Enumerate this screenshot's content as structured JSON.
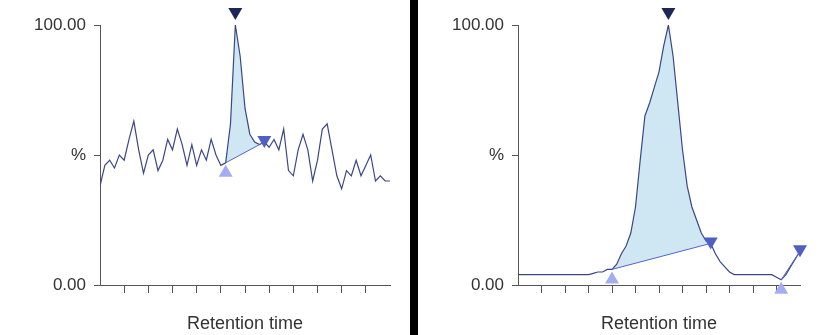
{
  "chart_data": [
    {
      "type": "line",
      "x_label": "Retention time",
      "color": "#3b4785",
      "x": [
        0,
        0.2,
        0.4,
        0.6,
        0.8,
        1,
        1.2,
        1.4,
        1.6,
        1.8,
        2,
        2.2,
        2.4,
        2.6,
        2.8,
        3,
        3.2,
        3.4,
        3.6,
        3.8,
        4,
        4.2,
        4.4,
        4.6,
        4.8,
        5,
        5.2,
        5.4,
        5.6,
        5.8,
        6,
        6.2,
        6.4,
        6.6,
        6.8,
        7,
        7.2,
        7.4,
        7.6,
        7.8,
        8,
        8.2,
        8.4,
        8.6,
        8.8,
        9,
        9.2,
        9.4,
        9.6,
        9.8,
        10,
        10.2,
        10.4,
        10.6,
        10.8,
        11,
        11.2,
        11.4,
        11.6,
        11.8,
        12
      ],
      "values": [
        38,
        46,
        48,
        45,
        50,
        48,
        56,
        63,
        52,
        43,
        50,
        52,
        44,
        48,
        56,
        52,
        60,
        54,
        46,
        54,
        46,
        52,
        48,
        56,
        50,
        46,
        47,
        62,
        100,
        88,
        68,
        58,
        55,
        54,
        55,
        53,
        56,
        52,
        60,
        44,
        42,
        52,
        58,
        52,
        40,
        48,
        60,
        62,
        52,
        42,
        37,
        44,
        42,
        48,
        42,
        46,
        50,
        40,
        42,
        40,
        40
      ],
      "xlim": [
        0,
        12
      ],
      "xticks": [
        1,
        2,
        3,
        4,
        5,
        6,
        7,
        8,
        9,
        10,
        11
      ],
      "ylim": [
        0,
        100
      ],
      "yticks": [
        {
          "value": 0,
          "label": "0.00"
        },
        {
          "value": 50,
          "label": "%"
        },
        {
          "value": 100,
          "label": "100.00"
        }
      ],
      "tick_labels": "y",
      "peaks": [
        {
          "start": [
            5.2,
            47
          ],
          "apex": [
            5.6,
            100
          ],
          "end": [
            6.8,
            55
          ]
        }
      ]
    },
    {
      "type": "line",
      "x_label": "Retention time",
      "color": "#3b4785",
      "x": [
        0,
        0.2,
        0.4,
        0.6,
        0.8,
        1,
        1.2,
        1.4,
        1.6,
        1.8,
        2,
        2.2,
        2.4,
        2.6,
        2.8,
        3,
        3.2,
        3.4,
        3.6,
        3.8,
        4,
        4.2,
        4.4,
        4.6,
        4.8,
        5,
        5.2,
        5.4,
        5.6,
        5.8,
        6,
        6.2,
        6.4,
        6.6,
        6.8,
        7,
        7.2,
        7.4,
        7.6,
        7.8,
        8,
        8.2,
        8.4,
        8.6,
        8.8,
        9,
        9.2,
        9.4,
        9.6,
        9.8,
        10,
        10.2,
        10.4,
        10.6,
        10.8,
        11,
        11.2,
        11.4,
        11.6,
        11.8,
        12
      ],
      "values": [
        4,
        4,
        4,
        4,
        4,
        4,
        4,
        4,
        4,
        4,
        4,
        4,
        4,
        4,
        4,
        4,
        4.5,
        5,
        5,
        6,
        6,
        8,
        12,
        15,
        20,
        30,
        48,
        65,
        70,
        76,
        82,
        92,
        100,
        88,
        70,
        52,
        38,
        30,
        25,
        20,
        17,
        16,
        12,
        9,
        7,
        5,
        4,
        4,
        4,
        4,
        4,
        4,
        4,
        4,
        4,
        3,
        2,
        4,
        7,
        10,
        13
      ],
      "xlim": [
        0,
        12
      ],
      "xticks": [
        1,
        2,
        3,
        4,
        5,
        6,
        7,
        8,
        9,
        10,
        11
      ],
      "ylim": [
        0,
        100
      ],
      "yticks": [
        {
          "value": 0,
          "label": "0.00"
        },
        {
          "value": 50,
          "label": "%"
        },
        {
          "value": 100,
          "label": "100.00"
        }
      ],
      "tick_labels": "y",
      "peaks": [
        {
          "start": [
            4,
            6
          ],
          "apex": [
            6.4,
            100
          ],
          "end": [
            8.2,
            16
          ]
        },
        {
          "start": [
            11.2,
            2
          ],
          "end": [
            12,
            13
          ]
        }
      ]
    }
  ]
}
